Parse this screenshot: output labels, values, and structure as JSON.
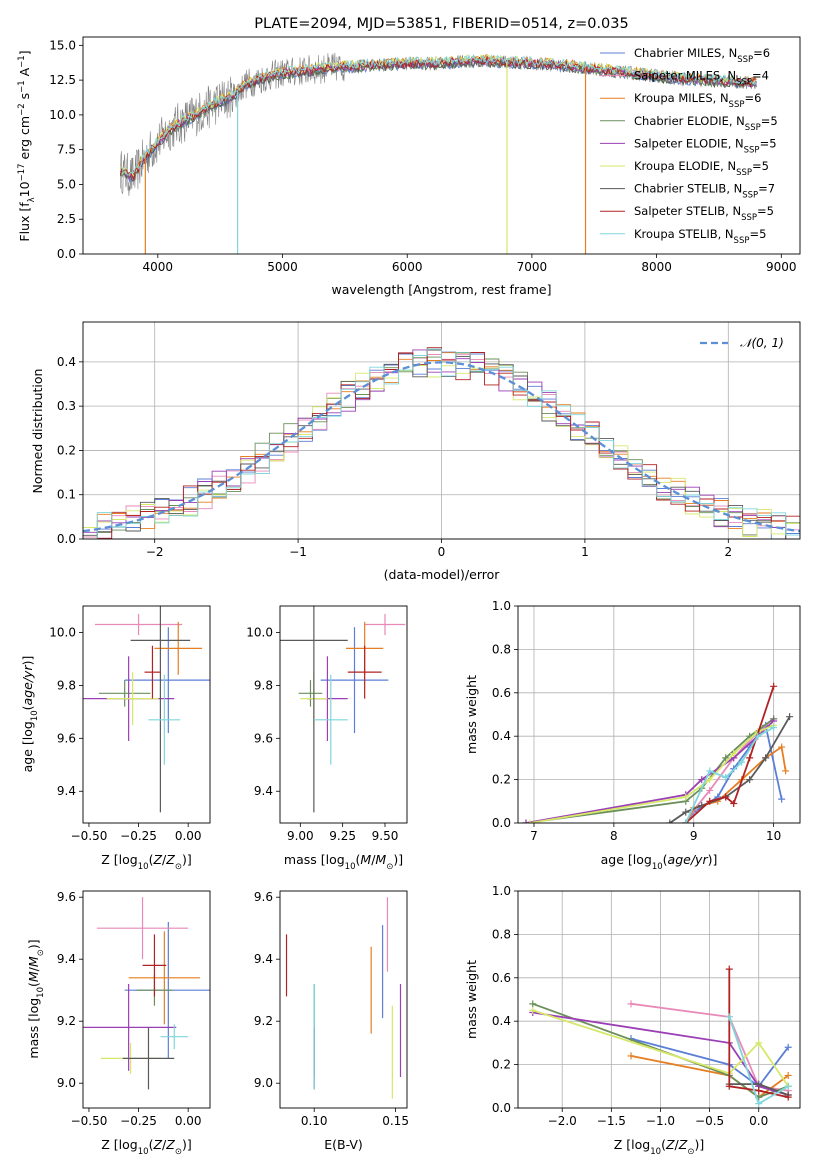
{
  "palette": {
    "c0": "#5b7fd6",
    "c1": "#e889b8",
    "c2": "#e67e22",
    "c3": "#6a8f5a",
    "c4": "#9b3fb5",
    "c5": "#d6e86a",
    "c6": "#5a5a5a",
    "c7": "#b22222",
    "c8": "#7fd6dc"
  },
  "chart_data": [
    {
      "id": "spectrum",
      "type": "line",
      "title": "PLATE=2094, MJD=53851, FIBERID=0514, z=0.035",
      "xlabel": "wavelength [Angstrom, rest frame]",
      "ylabel": "Flux [f",
      "xlim": [
        3400,
        9150
      ],
      "ylim": [
        0,
        15.6
      ],
      "xticks": [
        4000,
        5000,
        6000,
        7000,
        8000,
        9000
      ],
      "yticks": [
        0.0,
        2.5,
        5.0,
        7.5,
        10.0,
        12.5,
        15.0
      ],
      "ytick_labels": [
        "0.0",
        "2.5",
        "5.0",
        "7.5",
        "10.0",
        "12.5",
        "15.0"
      ],
      "legend_position": "upper-right",
      "legend": [
        {
          "pre": "Chabrier MILES, N",
          "sub": "SSP",
          "post": "=6",
          "color_key": "c0"
        },
        {
          "pre": "Salpeter MILES, N",
          "sub": "SSP",
          "post": "=4",
          "color_key": "c1"
        },
        {
          "pre": "Kroupa MILES, N",
          "sub": "SSP",
          "post": "=6",
          "color_key": "c2"
        },
        {
          "pre": "Chabrier ELODIE, N",
          "sub": "SSP",
          "post": "=5",
          "color_key": "c3"
        },
        {
          "pre": "Salpeter ELODIE, N",
          "sub": "SSP",
          "post": "=5",
          "color_key": "c4"
        },
        {
          "pre": "Kroupa ELODIE, N",
          "sub": "SSP",
          "post": "=5",
          "color_key": "c5"
        },
        {
          "pre": "Chabrier STELIB, N",
          "sub": "SSP",
          "post": "=7",
          "color_key": "c6"
        },
        {
          "pre": "Salpeter STELIB, N",
          "sub": "SSP",
          "post": "=5",
          "color_key": "c7"
        },
        {
          "pre": "Kroupa STELIB, N",
          "sub": "SSP",
          "post": "=5",
          "color_key": "c8"
        }
      ],
      "data_envelope": {
        "x": [
          3700,
          3800,
          3900,
          4000,
          4100,
          4200,
          4300,
          4400,
          4500,
          4600,
          4700,
          4800,
          4900,
          5000,
          5200,
          5400,
          5600,
          5800,
          6000,
          6200,
          6400,
          6600,
          6800,
          7000,
          7200,
          7400,
          7600,
          7800,
          8000,
          8200,
          8400,
          8600,
          8800
        ],
        "y": [
          6.0,
          5.5,
          7.0,
          8.0,
          9.0,
          9.5,
          10.0,
          10.5,
          11.0,
          11.3,
          12.2,
          12.5,
          12.8,
          13.0,
          13.2,
          13.4,
          13.5,
          13.6,
          13.7,
          13.7,
          13.8,
          13.9,
          13.8,
          13.7,
          13.6,
          13.4,
          13.2,
          13.0,
          12.8,
          12.6,
          12.5,
          12.4,
          12.3
        ]
      },
      "noise_amplitude": 1.5,
      "drops": [
        3900,
        4640,
        6800,
        7430
      ]
    },
    {
      "id": "residuals",
      "type": "histogram",
      "xlabel": "(data-model)/error",
      "ylabel": "Normed distribution",
      "xlim": [
        -2.5,
        2.5
      ],
      "ylim": [
        0,
        0.49
      ],
      "xticks": [
        -2,
        -1,
        0,
        1,
        2
      ],
      "xtick_labels": [
        "−2",
        "−1",
        "0",
        "1",
        "2"
      ],
      "yticks": [
        0.0,
        0.1,
        0.2,
        0.3,
        0.4
      ],
      "ytick_labels": [
        "0.0",
        "0.1",
        "0.2",
        "0.3",
        "0.4"
      ],
      "grid": true,
      "legend_label": "𝒩(0, 1)",
      "legend_position": "upper-right",
      "bin_width": 0.1,
      "reference_curve": "normal(0,1)"
    },
    {
      "id": "age-vs-Z",
      "type": "errorbar",
      "xlabel": "Z [log",
      "ylabel": "age  [log",
      "xlim": [
        -0.53,
        0.11
      ],
      "ylim": [
        9.28,
        10.1
      ],
      "xticks": [
        -0.5,
        -0.25,
        0.0
      ],
      "xtick_labels": [
        "−0.50",
        "−0.25",
        "0.00"
      ],
      "yticks": [
        9.4,
        9.6,
        9.8,
        10.0
      ],
      "ytick_labels": [
        "9.4",
        "9.6",
        "9.8",
        "10.0"
      ],
      "points": [
        {
          "x": -0.1,
          "y": 9.82,
          "xerr": 0.22,
          "yerr": 0.2,
          "color_key": "c0"
        },
        {
          "x": -0.25,
          "y": 10.03,
          "xerr": 0.22,
          "yerr": 0.04,
          "color_key": "c1"
        },
        {
          "x": -0.05,
          "y": 9.94,
          "xerr": 0.12,
          "yerr": 0.1,
          "color_key": "c2"
        },
        {
          "x": -0.32,
          "y": 9.77,
          "xerr": 0.13,
          "yerr": 0.05,
          "color_key": "c3"
        },
        {
          "x": -0.3,
          "y": 9.75,
          "xerr": 0.23,
          "yerr": 0.16,
          "color_key": "c4"
        },
        {
          "x": -0.28,
          "y": 9.75,
          "xerr": 0.13,
          "yerr": 0.1,
          "color_key": "c5"
        },
        {
          "x": -0.14,
          "y": 9.97,
          "xerr": 0.15,
          "yerr": 0.65,
          "color_key": "c6"
        },
        {
          "x": -0.18,
          "y": 9.85,
          "xerr": 0.04,
          "yerr": 0.1,
          "color_key": "c7"
        },
        {
          "x": -0.12,
          "y": 9.67,
          "xerr": 0.08,
          "yerr": 0.17,
          "color_key": "c8"
        }
      ]
    },
    {
      "id": "age-vs-mass",
      "type": "errorbar",
      "xlabel": "mass [log",
      "xlim": [
        8.88,
        9.63
      ],
      "ylim": [
        9.28,
        10.1
      ],
      "xticks": [
        9.0,
        9.25,
        9.5
      ],
      "xtick_labels": [
        "9.00",
        "9.25",
        "9.50"
      ],
      "yticks": [
        9.4,
        9.6,
        9.8,
        10.0
      ],
      "ytick_labels": [
        "9.4",
        "9.6",
        "9.8",
        "10.0"
      ],
      "points": [
        {
          "x": 9.32,
          "y": 9.82,
          "xerr": 0.2,
          "yerr": 0.2,
          "color_key": "c0"
        },
        {
          "x": 9.5,
          "y": 10.03,
          "xerr": 0.12,
          "yerr": 0.04,
          "color_key": "c1"
        },
        {
          "x": 9.38,
          "y": 9.94,
          "xerr": 0.11,
          "yerr": 0.1,
          "color_key": "c2"
        },
        {
          "x": 9.06,
          "y": 9.77,
          "xerr": 0.07,
          "yerr": 0.05,
          "color_key": "c3"
        },
        {
          "x": 9.16,
          "y": 9.75,
          "xerr": 0.12,
          "yerr": 0.16,
          "color_key": "c4"
        },
        {
          "x": 9.08,
          "y": 9.75,
          "xerr": 0.08,
          "yerr": 0.1,
          "color_key": "c5"
        },
        {
          "x": 9.08,
          "y": 9.97,
          "xerr": 0.2,
          "yerr": 0.65,
          "color_key": "c6"
        },
        {
          "x": 9.38,
          "y": 9.85,
          "xerr": 0.1,
          "yerr": 0.1,
          "color_key": "c7"
        },
        {
          "x": 9.18,
          "y": 9.67,
          "xerr": 0.1,
          "yerr": 0.17,
          "color_key": "c8"
        }
      ]
    },
    {
      "id": "cumulative-mass-weight-vs-age",
      "type": "line",
      "xlabel": "age  [log",
      "ylabel": "mass weight",
      "xlim": [
        6.8,
        10.33
      ],
      "ylim": [
        0,
        1.0
      ],
      "xticks": [
        7,
        8,
        9,
        10
      ],
      "xtick_labels": [
        "7",
        "8",
        "9",
        "10"
      ],
      "yticks": [
        0.0,
        0.2,
        0.4,
        0.6,
        0.8,
        1.0
      ],
      "ytick_labels": [
        "0.0",
        "0.2",
        "0.4",
        "0.6",
        "0.8",
        "1.0"
      ],
      "grid": true,
      "series": [
        {
          "color_key": "c0",
          "x": [
            8.9,
            9.0,
            9.3,
            9.5,
            9.7,
            9.9,
            10.1
          ],
          "y": [
            0.0,
            0.05,
            0.12,
            0.25,
            0.35,
            0.45,
            0.11
          ]
        },
        {
          "color_key": "c1",
          "x": [
            8.9,
            9.0,
            9.2,
            9.5,
            9.8,
            10.0
          ],
          "y": [
            0.0,
            0.06,
            0.15,
            0.3,
            0.42,
            0.48
          ]
        },
        {
          "color_key": "c2",
          "x": [
            8.9,
            9.0,
            9.3,
            9.6,
            9.9,
            10.1,
            10.15
          ],
          "y": [
            0.0,
            0.07,
            0.1,
            0.2,
            0.3,
            0.35,
            0.24
          ]
        },
        {
          "color_key": "c3",
          "x": [
            6.9,
            8.9,
            9.1,
            9.4,
            9.7,
            10.0
          ],
          "y": [
            0.0,
            0.1,
            0.16,
            0.3,
            0.4,
            0.48
          ]
        },
        {
          "color_key": "c4",
          "x": [
            6.9,
            8.9,
            9.1,
            9.5,
            9.8,
            10.0
          ],
          "y": [
            0.0,
            0.13,
            0.2,
            0.3,
            0.4,
            0.47
          ]
        },
        {
          "color_key": "c5",
          "x": [
            6.95,
            8.9,
            9.2,
            9.5,
            9.8,
            10.0
          ],
          "y": [
            0.0,
            0.12,
            0.2,
            0.32,
            0.42,
            0.45
          ]
        },
        {
          "color_key": "c6",
          "x": [
            8.7,
            8.9,
            9.1,
            9.4,
            9.7,
            9.9,
            10.2
          ],
          "y": [
            0.0,
            0.05,
            0.08,
            0.12,
            0.2,
            0.3,
            0.49
          ]
        },
        {
          "color_key": "c7",
          "x": [
            8.9,
            9.2,
            9.4,
            9.5,
            9.7,
            10.0
          ],
          "y": [
            0.0,
            0.1,
            0.12,
            0.09,
            0.3,
            0.63
          ]
        },
        {
          "color_key": "c8",
          "x": [
            8.9,
            9.2,
            9.4,
            9.6,
            9.8,
            10.0
          ],
          "y": [
            0.0,
            0.24,
            0.21,
            0.28,
            0.4,
            0.44
          ]
        }
      ]
    },
    {
      "id": "mass-vs-Z",
      "type": "errorbar",
      "xlabel": "Z [log",
      "ylabel": "mass [log",
      "xlim": [
        -0.53,
        0.11
      ],
      "ylim": [
        8.92,
        9.62
      ],
      "xticks": [
        -0.5,
        -0.25,
        0.0
      ],
      "xtick_labels": [
        "−0.50",
        "−0.25",
        "0.00"
      ],
      "yticks": [
        9.0,
        9.2,
        9.4,
        9.6
      ],
      "ytick_labels": [
        "9.0",
        "9.2",
        "9.4",
        "9.6"
      ],
      "points": [
        {
          "x": -0.1,
          "y": 9.3,
          "xerr": 0.22,
          "yerr": 0.22,
          "color_key": "c0"
        },
        {
          "x": -0.23,
          "y": 9.5,
          "xerr": 0.23,
          "yerr": 0.1,
          "color_key": "c1"
        },
        {
          "x": -0.12,
          "y": 9.34,
          "xerr": 0.18,
          "yerr": 0.15,
          "color_key": "c2"
        },
        {
          "x": -0.17,
          "y": 9.3,
          "xerr": 0.09,
          "yerr": 0.05,
          "color_key": "c3"
        },
        {
          "x": -0.3,
          "y": 9.18,
          "xerr": 0.24,
          "yerr": 0.14,
          "color_key": "c4"
        },
        {
          "x": -0.29,
          "y": 9.08,
          "xerr": 0.15,
          "yerr": 0.05,
          "color_key": "c5"
        },
        {
          "x": -0.2,
          "y": 9.08,
          "xerr": 0.13,
          "yerr": 0.1,
          "color_key": "c6"
        },
        {
          "x": -0.17,
          "y": 9.38,
          "xerr": 0.06,
          "yerr": 0.1,
          "color_key": "c7"
        },
        {
          "x": -0.07,
          "y": 9.15,
          "xerr": 0.07,
          "yerr": 0.04,
          "color_key": "c8"
        }
      ]
    },
    {
      "id": "mass-vs-ebv",
      "type": "errorbar",
      "xlabel": "E(B-V)",
      "xlim": [
        0.079,
        0.157
      ],
      "ylim": [
        8.92,
        9.62
      ],
      "xticks": [
        0.1,
        0.15
      ],
      "xtick_labels": [
        "0.10",
        "0.15"
      ],
      "yticks": [
        9.0,
        9.2,
        9.4,
        9.6
      ],
      "ytick_labels": [
        "9.0",
        "9.2",
        "9.4",
        "9.6"
      ],
      "points": [
        {
          "x": 0.142,
          "y": 9.36,
          "yerr": 0.15,
          "color_key": "c0"
        },
        {
          "x": 0.145,
          "y": 9.48,
          "yerr": 0.12,
          "color_key": "c1"
        },
        {
          "x": 0.135,
          "y": 9.3,
          "yerr": 0.14,
          "color_key": "c2"
        },
        {
          "x": 0.1,
          "y": 9.17,
          "yerr": 0.15,
          "color_key": "c3"
        },
        {
          "x": 0.153,
          "y": 9.17,
          "yerr": 0.15,
          "color_key": "c4"
        },
        {
          "x": 0.148,
          "y": 9.1,
          "yerr": 0.15,
          "color_key": "c5"
        },
        {
          "x": 0.1,
          "y": 9.08,
          "yerr": 0.1,
          "color_key": "c6"
        },
        {
          "x": 0.083,
          "y": 9.38,
          "yerr": 0.1,
          "color_key": "c7"
        },
        {
          "x": 0.1,
          "y": 9.15,
          "yerr": 0.17,
          "color_key": "c8"
        }
      ]
    },
    {
      "id": "mass-weight-vs-Z",
      "type": "line",
      "xlabel": "Z [log",
      "ylabel": "mass weight",
      "xlim": [
        -2.45,
        0.42
      ],
      "ylim": [
        0,
        1.0
      ],
      "xticks": [
        -2.0,
        -1.5,
        -1.0,
        -0.5,
        0.0
      ],
      "xtick_labels": [
        "−2.0",
        "−1.5",
        "−1.0",
        "−0.5",
        "0.0"
      ],
      "yticks": [
        0.0,
        0.2,
        0.4,
        0.6,
        0.8,
        1.0
      ],
      "ytick_labels": [
        "0.0",
        "0.2",
        "0.4",
        "0.6",
        "0.8",
        "1.0"
      ],
      "grid": true,
      "series": [
        {
          "color_key": "c0",
          "x": [
            -1.3,
            -0.3,
            0.0,
            0.3
          ],
          "y": [
            0.32,
            0.2,
            0.1,
            0.28
          ]
        },
        {
          "color_key": "c1",
          "x": [
            -1.3,
            -0.3,
            0.0,
            0.3
          ],
          "y": [
            0.48,
            0.42,
            0.1,
            0.08
          ]
        },
        {
          "color_key": "c2",
          "x": [
            -1.3,
            -0.3,
            0.0,
            0.3
          ],
          "y": [
            0.24,
            0.15,
            0.05,
            0.15
          ]
        },
        {
          "color_key": "c3",
          "x": [
            -2.3,
            -0.3,
            0.0,
            0.3
          ],
          "y": [
            0.48,
            0.15,
            0.05,
            0.1
          ]
        },
        {
          "color_key": "c4",
          "x": [
            -2.3,
            -0.3,
            0.0,
            0.3
          ],
          "y": [
            0.44,
            0.3,
            0.1,
            0.06
          ]
        },
        {
          "color_key": "c5",
          "x": [
            -2.3,
            -0.3,
            0.0,
            0.3
          ],
          "y": [
            0.45,
            0.16,
            0.3,
            0.1
          ]
        },
        {
          "color_key": "c6",
          "x": [
            -0.3,
            0.0,
            0.3
          ],
          "y": [
            0.11,
            0.11,
            0.06
          ]
        },
        {
          "color_key": "c7",
          "x": [
            -0.3,
            -0.3,
            0.0,
            0.3
          ],
          "y": [
            0.64,
            0.1,
            0.08,
            0.05
          ]
        },
        {
          "color_key": "c8",
          "x": [
            -0.3,
            0.0,
            0.3
          ],
          "y": [
            0.42,
            0.02,
            0.1
          ]
        }
      ]
    }
  ],
  "ylabel_parts": {
    "flux": {
      "pre": "Flux [f",
      "sub": "λ",
      "mid": "10",
      "sup1": "−17",
      "post": " erg cm",
      "sup2": "−2",
      "post2": " s",
      "sup3": "−1",
      "post3": " A",
      "sup4": "−1",
      "end": "]"
    },
    "age": {
      "pre": "age  [log",
      "sub": "10",
      "post": "(age/yr)]"
    },
    "mass": {
      "pre": "mass [log",
      "sub": "10",
      "post": "(M/M",
      "sub2": "⊙",
      "end": ")]"
    },
    "Z": {
      "pre": "Z [log",
      "sub": "10",
      "post": "(Z/Z",
      "sub2": "⊙",
      "end": ")]"
    }
  }
}
